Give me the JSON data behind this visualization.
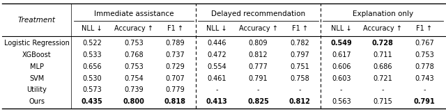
{
  "col_groups": [
    {
      "label": "Immediate assistance",
      "cols": [
        "NLL ↓",
        "Accuracy ↑",
        "F1 ↑"
      ]
    },
    {
      "label": "Delayed recommendation",
      "cols": [
        "NLL ↓",
        "Accuracy ↑",
        "F1 ↑"
      ]
    },
    {
      "label": "Explanation only",
      "cols": [
        "NLL ↓",
        "Accuracy ↑",
        "F1 ↑"
      ]
    }
  ],
  "row_header": "Treatment",
  "rows": [
    {
      "name": "Logistic Regression",
      "data": [
        [
          "0.522",
          "0.753",
          "0.789"
        ],
        [
          "0.446",
          "0.809",
          "0.782"
        ],
        [
          "0.549",
          "0.728",
          "0.767"
        ]
      ],
      "bold": [
        [
          false,
          false,
          false
        ],
        [
          false,
          false,
          false
        ],
        [
          true,
          true,
          false
        ]
      ]
    },
    {
      "name": "XGBoost",
      "data": [
        [
          "0.533",
          "0.768",
          "0.737"
        ],
        [
          "0.472",
          "0.812",
          "0.797"
        ],
        [
          "0.617",
          "0.711",
          "0.753"
        ]
      ],
      "bold": [
        [
          false,
          false,
          false
        ],
        [
          false,
          false,
          false
        ],
        [
          false,
          false,
          false
        ]
      ]
    },
    {
      "name": "MLP",
      "data": [
        [
          "0.656",
          "0.753",
          "0.729"
        ],
        [
          "0.554",
          "0.777",
          "0.751"
        ],
        [
          "0.606",
          "0.686",
          "0.778"
        ]
      ],
      "bold": [
        [
          false,
          false,
          false
        ],
        [
          false,
          false,
          false
        ],
        [
          false,
          false,
          false
        ]
      ]
    },
    {
      "name": "SVM",
      "data": [
        [
          "0.530",
          "0.754",
          "0.707"
        ],
        [
          "0.461",
          "0.791",
          "0.758"
        ],
        [
          "0.603",
          "0.721",
          "0.743"
        ]
      ],
      "bold": [
        [
          false,
          false,
          false
        ],
        [
          false,
          false,
          false
        ],
        [
          false,
          false,
          false
        ]
      ]
    },
    {
      "name": "Utility",
      "data": [
        [
          "0.573",
          "0.739",
          "0.779"
        ],
        [
          "-",
          "-",
          "-"
        ],
        [
          "-",
          "-",
          "-"
        ]
      ],
      "bold": [
        [
          false,
          false,
          false
        ],
        [
          false,
          false,
          false
        ],
        [
          false,
          false,
          false
        ]
      ]
    },
    {
      "name": "Ours",
      "data": [
        [
          "0.435",
          "0.800",
          "0.818"
        ],
        [
          "0.413",
          "0.825",
          "0.812"
        ],
        [
          "0.563",
          "0.715",
          "0.791"
        ]
      ],
      "bold": [
        [
          true,
          true,
          true
        ],
        [
          true,
          true,
          true
        ],
        [
          false,
          false,
          true
        ]
      ]
    }
  ],
  "bg_color": "#ffffff",
  "text_color": "#000000",
  "font_size": 7.0,
  "header_font_size": 7.5,
  "fig_width": 6.4,
  "fig_height": 1.61,
  "dpi": 100
}
